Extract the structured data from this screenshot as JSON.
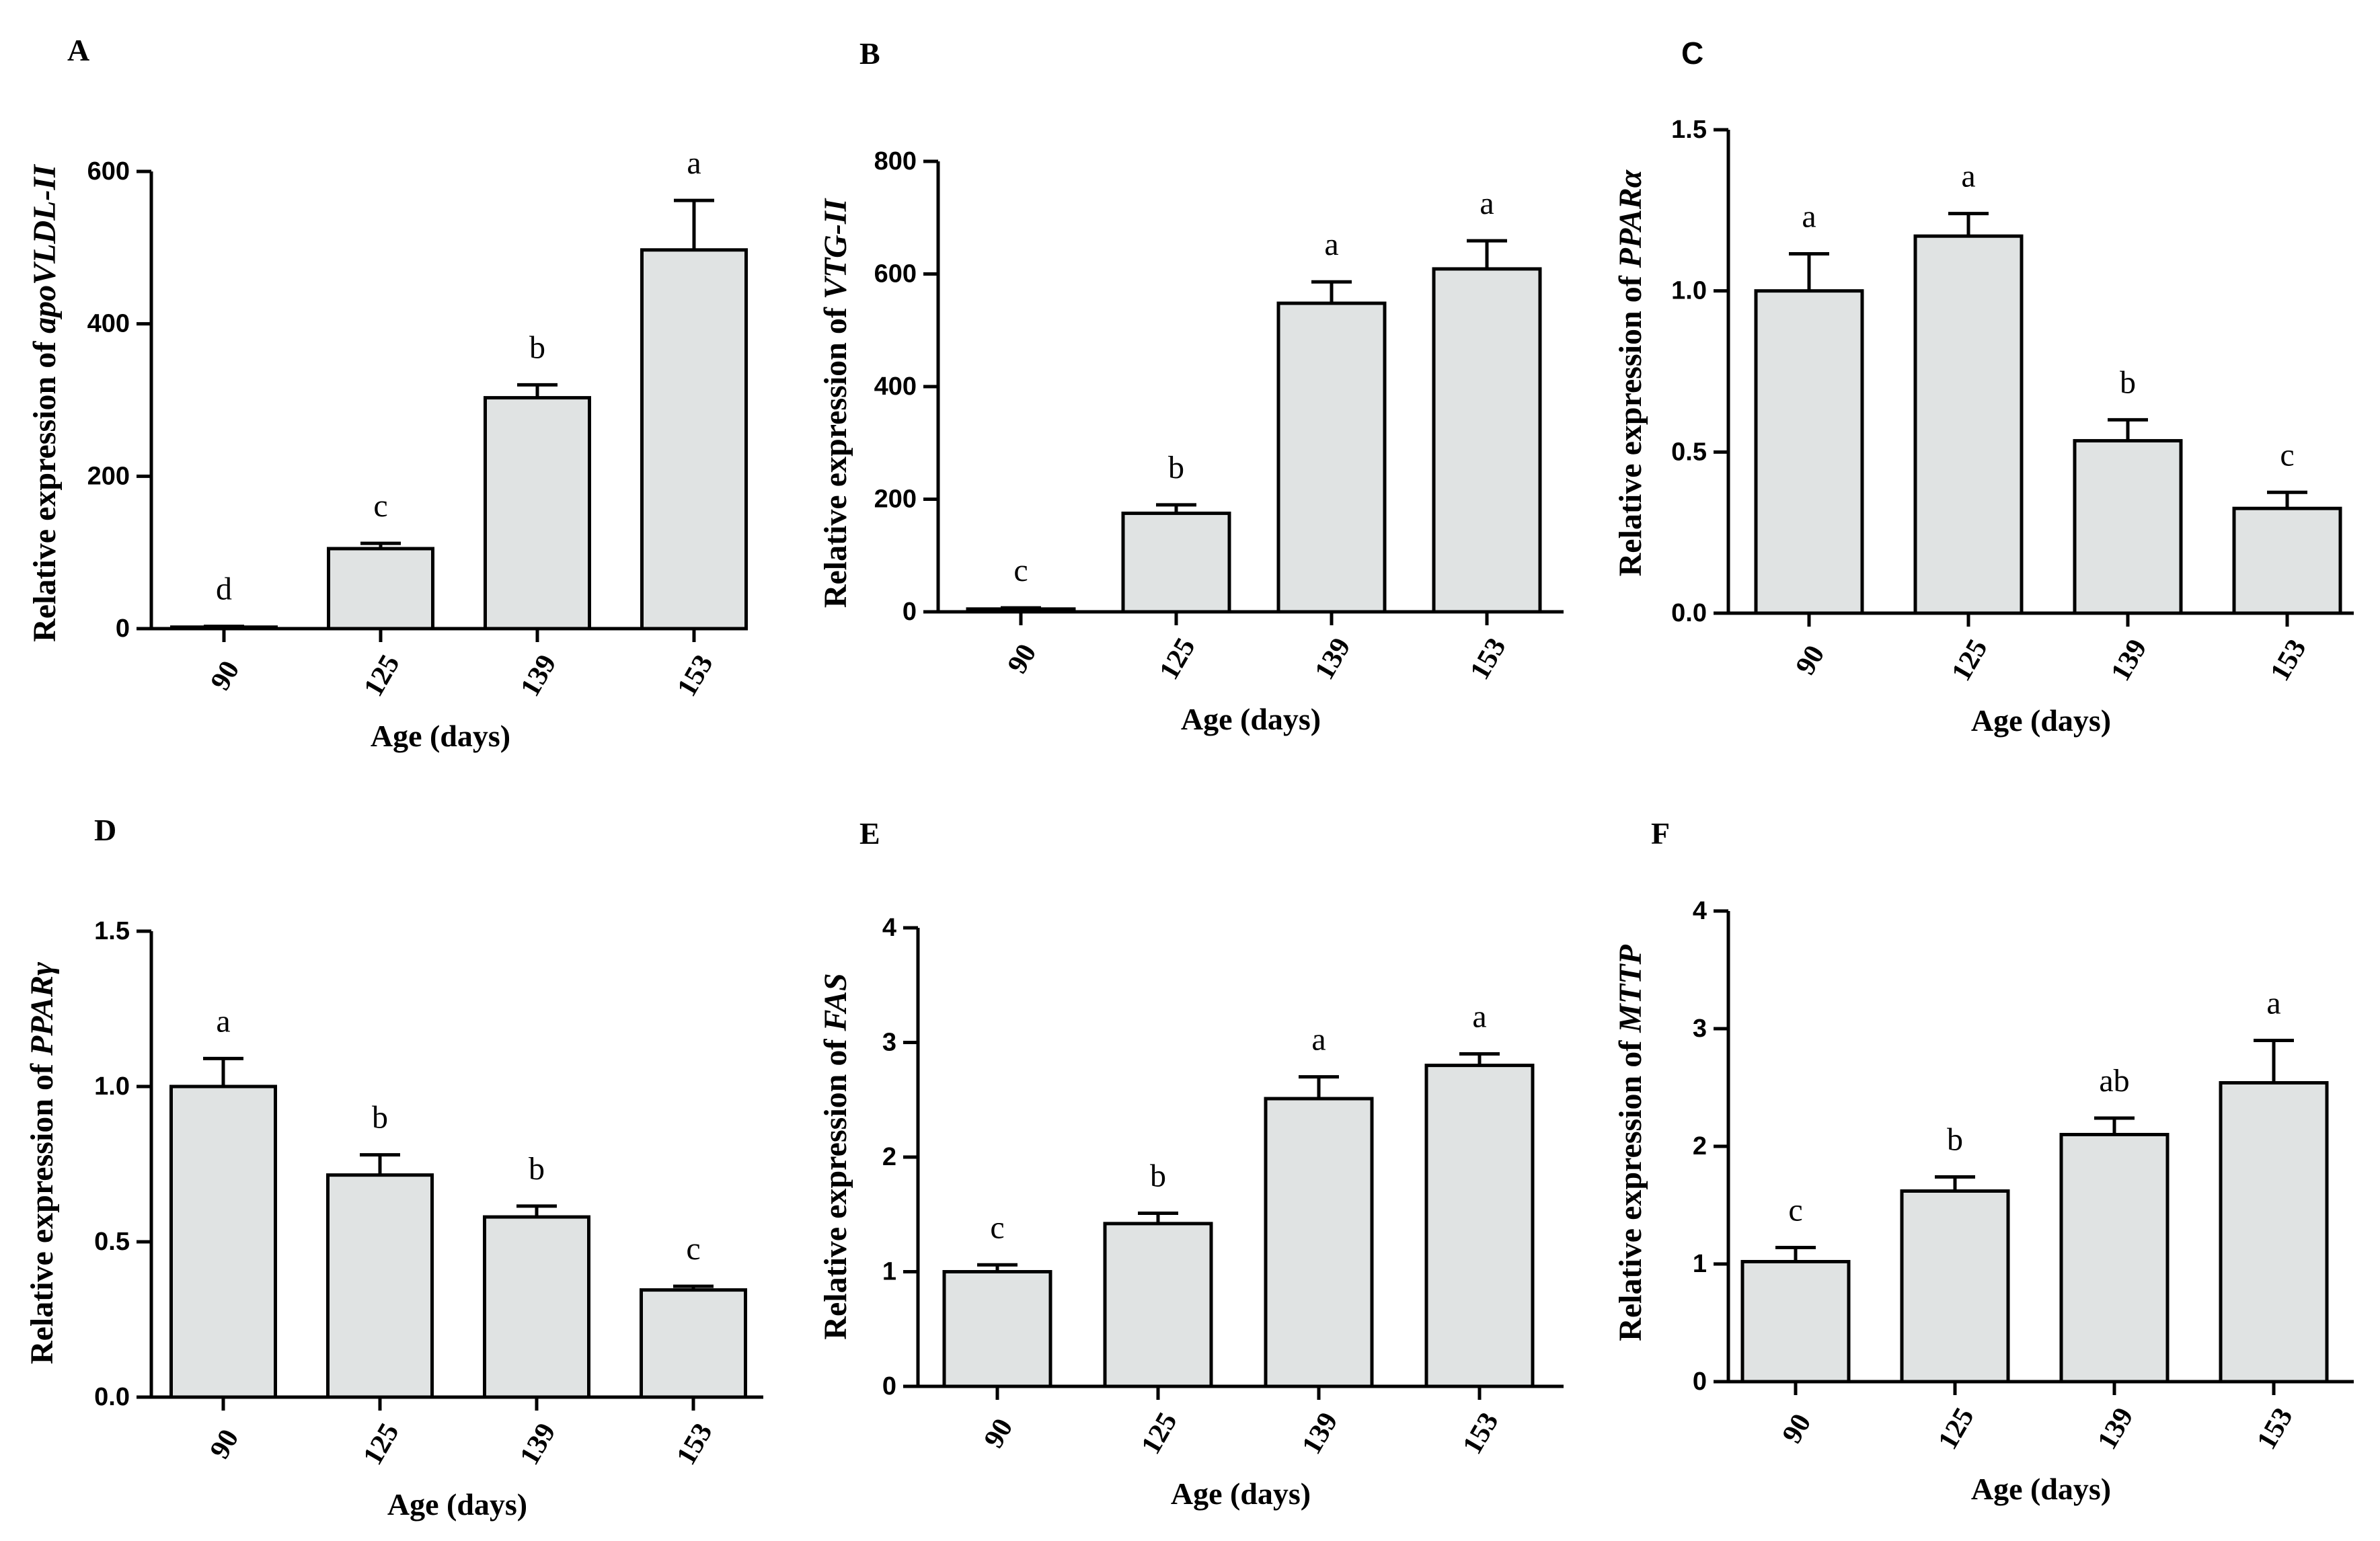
{
  "chart_data": [
    {
      "type": "bar",
      "panel_label": "A",
      "categories": [
        "90",
        "125",
        "139",
        "153"
      ],
      "values": [
        2,
        105,
        303,
        497
      ],
      "errors": [
        1,
        7,
        17,
        65
      ],
      "significance": [
        "d",
        "c",
        "b",
        "a"
      ],
      "ylabel_plain": "Relative expression of",
      "ylabel_gene": "apoVLDL-II",
      "xlabel": "Age (days)",
      "ylim": [
        0,
        600
      ],
      "yticks": [
        "0",
        "200",
        "400",
        "600"
      ],
      "bar_color": "#e0e3e3",
      "grid": false
    },
    {
      "type": "bar",
      "panel_label": "B",
      "categories": [
        "90",
        "125",
        "139",
        "153"
      ],
      "values": [
        5,
        175,
        548,
        609
      ],
      "errors": [
        2,
        15,
        38,
        50
      ],
      "significance": [
        "c",
        "b",
        "a",
        "a"
      ],
      "ylabel_plain": "Relative expression of",
      "ylabel_gene": "VTG-II",
      "xlabel": "Age (days)",
      "ylim": [
        0,
        800
      ],
      "yticks": [
        "0",
        "200",
        "400",
        "600",
        "800"
      ],
      "bar_color": "#e0e3e3",
      "grid": false
    },
    {
      "type": "bar",
      "panel_label": "C",
      "categories": [
        "90",
        "125",
        "139",
        "153"
      ],
      "values": [
        1.0,
        1.17,
        0.535,
        0.325
      ],
      "errors": [
        0.115,
        0.07,
        0.065,
        0.05
      ],
      "significance": [
        "a",
        "a",
        "b",
        "c"
      ],
      "ylabel_plain": "Relative expression of",
      "ylabel_gene": "PPARα",
      "xlabel": "Age (days)",
      "ylim": [
        0,
        1.5
      ],
      "yticks": [
        "0.0",
        "0.5",
        "1.0",
        "1.5"
      ],
      "bar_color": "#e0e3e3",
      "grid": false
    },
    {
      "type": "bar",
      "panel_label": "D",
      "categories": [
        "90",
        "125",
        "139",
        "153"
      ],
      "values": [
        1.0,
        0.715,
        0.58,
        0.345
      ],
      "errors": [
        0.09,
        0.065,
        0.035,
        0.012
      ],
      "significance": [
        "a",
        "b",
        "b",
        "c"
      ],
      "ylabel_plain": "Relative expression of",
      "ylabel_gene": "PPARγ",
      "xlabel": "Age (days)",
      "ylim": [
        0,
        1.5
      ],
      "yticks": [
        "0.0",
        "0.5",
        "1.0",
        "1.5"
      ],
      "bar_color": "#e0e3e3",
      "grid": false
    },
    {
      "type": "bar",
      "panel_label": "E",
      "categories": [
        "90",
        "125",
        "139",
        "153"
      ],
      "values": [
        1.0,
        1.42,
        2.51,
        2.8
      ],
      "errors": [
        0.06,
        0.09,
        0.19,
        0.1
      ],
      "significance": [
        "c",
        "b",
        "a",
        "a"
      ],
      "ylabel_plain": "Relative expression of",
      "ylabel_gene": "FAS",
      "xlabel": "Age (days)",
      "ylim": [
        0,
        4
      ],
      "yticks": [
        "0",
        "1",
        "2",
        "3",
        "4"
      ],
      "bar_color": "#e0e3e3",
      "grid": false
    },
    {
      "type": "bar",
      "panel_label": "F",
      "categories": [
        "90",
        "125",
        "139",
        "153"
      ],
      "values": [
        1.02,
        1.62,
        2.1,
        2.54
      ],
      "errors": [
        0.12,
        0.12,
        0.14,
        0.36
      ],
      "significance": [
        "c",
        "b",
        "ab",
        "a"
      ],
      "ylabel_plain": "Relative expression of",
      "ylabel_gene": "MTTP",
      "xlabel": "Age (days)",
      "ylim": [
        0,
        4
      ],
      "yticks": [
        "0",
        "1",
        "2",
        "3",
        "4"
      ],
      "bar_color": "#e0e3e3",
      "grid": false
    }
  ]
}
